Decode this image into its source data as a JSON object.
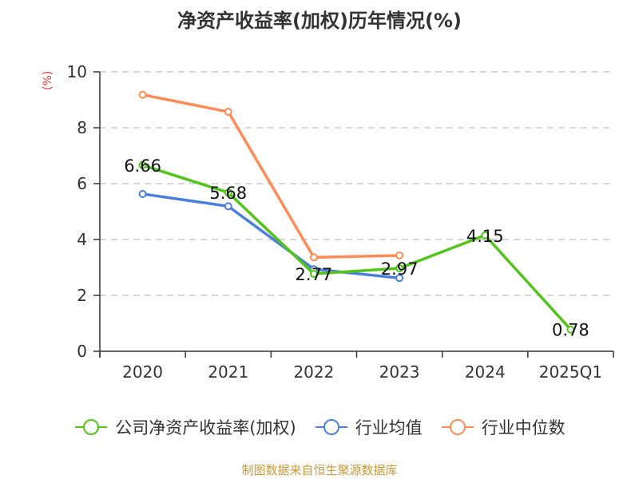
{
  "title": "净资产收益率(加权)历年情况(%)",
  "source": "制图数据来自恒生聚源数据库",
  "chart_data": {
    "type": "line",
    "title": "净资产收益率(加权)历年情况(%)",
    "xlabel": "",
    "ylabel": "(%)",
    "ylim": [
      0,
      10
    ],
    "yticks": [
      "0",
      "2",
      "4",
      "6",
      "8",
      "10"
    ],
    "grid": true,
    "legend_position": "bottom",
    "categories": [
      "2020",
      "2021",
      "2022",
      "2023",
      "2024",
      "2025Q1"
    ],
    "series": [
      {
        "name": "公司净资产收益率(加权)",
        "color": "#52c41a",
        "values": [
          6.66,
          5.68,
          2.77,
          2.97,
          4.15,
          0.78
        ],
        "labels": [
          "6.66",
          "5.68",
          "2.77",
          "2.97",
          "4.15",
          "0.78"
        ]
      },
      {
        "name": "行业均值",
        "color": "#4a7fdb",
        "values": [
          5.63,
          5.19,
          2.94,
          2.62,
          null,
          null
        ]
      },
      {
        "name": "行业中位数",
        "color": "#ff8c55",
        "values": [
          9.18,
          8.57,
          3.36,
          3.43,
          null,
          null
        ]
      }
    ]
  }
}
